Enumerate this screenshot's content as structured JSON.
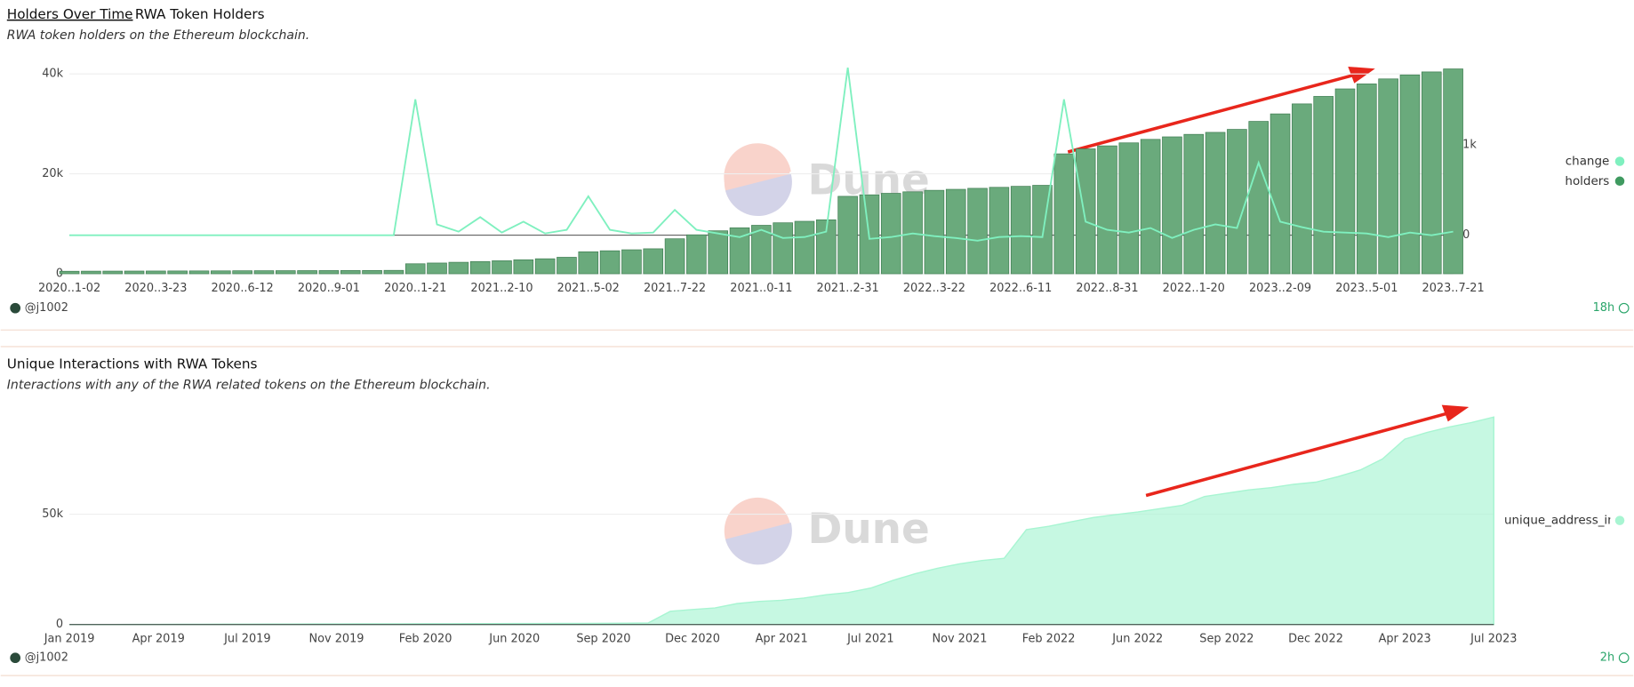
{
  "chart_data": [
    {
      "type": "combo",
      "title": "Holders Over Time",
      "tab": "RWA Token Holders",
      "subtitle": "RWA token holders on the Ethereum blockchain.",
      "watermark": "Dune",
      "author": "@j1002",
      "updated": "18h",
      "categories": [
        "2020..1-02",
        null,
        null,
        null,
        "2020..3-23",
        null,
        null,
        null,
        "2020..6-12",
        null,
        null,
        null,
        "2020..9-01",
        null,
        null,
        null,
        "2020..1-21",
        null,
        null,
        null,
        "2021..2-10",
        null,
        null,
        null,
        "2021..5-02",
        null,
        null,
        null,
        "2021..7-22",
        null,
        null,
        null,
        "2021..0-11",
        null,
        null,
        null,
        "2021..2-31",
        null,
        null,
        null,
        "2022..3-22",
        null,
        null,
        null,
        "2022..6-11",
        null,
        null,
        null,
        "2022..8-31",
        null,
        null,
        null,
        "2022..1-20",
        null,
        null,
        null,
        "2023..2-09",
        null,
        null,
        null,
        "2023..5-01",
        null,
        null,
        null,
        "2023..7-21"
      ],
      "series": [
        {
          "name": "change",
          "color": "#7ff0bf",
          "axis": "y2",
          "values": [
            0,
            0,
            0,
            0,
            0,
            0,
            0,
            0,
            0,
            0,
            0,
            0,
            0,
            0,
            0,
            0,
            1500,
            120,
            40,
            200,
            30,
            150,
            20,
            60,
            430,
            60,
            20,
            30,
            280,
            60,
            20,
            -20,
            60,
            -30,
            -20,
            40,
            1850,
            -40,
            -20,
            20,
            -10,
            -30,
            -60,
            -20,
            -10,
            -20,
            1500,
            150,
            60,
            30,
            80,
            -30,
            60,
            120,
            80,
            800,
            150,
            90,
            40,
            30,
            20,
            -20,
            30,
            0,
            40
          ]
        },
        {
          "name": "holders",
          "color": "#6aaa7c",
          "values": [
            500,
            520,
            530,
            540,
            550,
            560,
            570,
            580,
            600,
            610,
            620,
            630,
            640,
            650,
            660,
            680,
            2000,
            2150,
            2300,
            2450,
            2600,
            2800,
            3000,
            3300,
            4400,
            4600,
            4800,
            5000,
            7000,
            7800,
            8600,
            9200,
            9700,
            10200,
            10500,
            10800,
            15500,
            15800,
            16100,
            16400,
            16700,
            16900,
            17100,
            17300,
            17500,
            17700,
            24000,
            25000,
            25600,
            26200,
            26900,
            27400,
            27900,
            28300,
            28900,
            30500,
            32000,
            34000,
            35500,
            37000,
            38000,
            39000,
            39800,
            40400,
            41000
          ]
        }
      ],
      "ylim": [
        0,
        41250
      ],
      "yticks": [
        0,
        {
          "value": 20000,
          "label": "20k"
        },
        {
          "value": 40000,
          "label": "40k"
        }
      ],
      "y2lim": [
        -425,
        1850
      ],
      "y2ticks": [
        0,
        {
          "value": 1000,
          "label": "1k"
        }
      ],
      "grid": true,
      "legend": "right"
    },
    {
      "type": "area",
      "title": "Unique Interactions with RWA Tokens",
      "subtitle": "Interactions with any of the RWA related tokens on the Ethereum blockchain.",
      "watermark": "Dune",
      "author": "@j1002",
      "updated": "2h",
      "categories": [
        "Jan 2019",
        null,
        null,
        null,
        "Apr 2019",
        null,
        null,
        null,
        "Jul 2019",
        null,
        null,
        null,
        "Nov 2019",
        null,
        null,
        null,
        "Feb 2020",
        null,
        null,
        null,
        "Jun 2020",
        null,
        null,
        null,
        "Sep 2020",
        null,
        null,
        null,
        "Dec 2020",
        null,
        null,
        null,
        "Apr 2021",
        null,
        null,
        null,
        "Jul 2021",
        null,
        null,
        null,
        "Nov 2021",
        null,
        null,
        null,
        "Feb 2022",
        null,
        null,
        null,
        "Jun 2022",
        null,
        null,
        null,
        "Sep 2022",
        null,
        null,
        null,
        "Dec 2022",
        null,
        null,
        null,
        "Apr 2023",
        null,
        null,
        null,
        "Jul 2023"
      ],
      "series": [
        {
          "name": "unique_address_in",
          "color": "#a8f5d2",
          "values": [
            0,
            0,
            0,
            50,
            80,
            100,
            120,
            150,
            150,
            200,
            200,
            250,
            250,
            300,
            300,
            300,
            350,
            350,
            400,
            400,
            450,
            450,
            500,
            500,
            550,
            600,
            700,
            6000,
            6800,
            7500,
            9500,
            10500,
            11000,
            12000,
            13500,
            14500,
            16500,
            20000,
            23000,
            25500,
            27500,
            29000,
            30000,
            43000,
            44500,
            46500,
            48500,
            49800,
            51000,
            52500,
            54000,
            58000,
            59500,
            61000,
            62000,
            63500,
            64500,
            67000,
            70000,
            75000,
            84000,
            87000,
            89500,
            91500,
            94000
          ]
        }
      ],
      "ylim": [
        0,
        94300
      ],
      "yticks": [
        0,
        {
          "value": 50000,
          "label": "50k"
        }
      ],
      "grid": true,
      "legend": "right"
    }
  ]
}
